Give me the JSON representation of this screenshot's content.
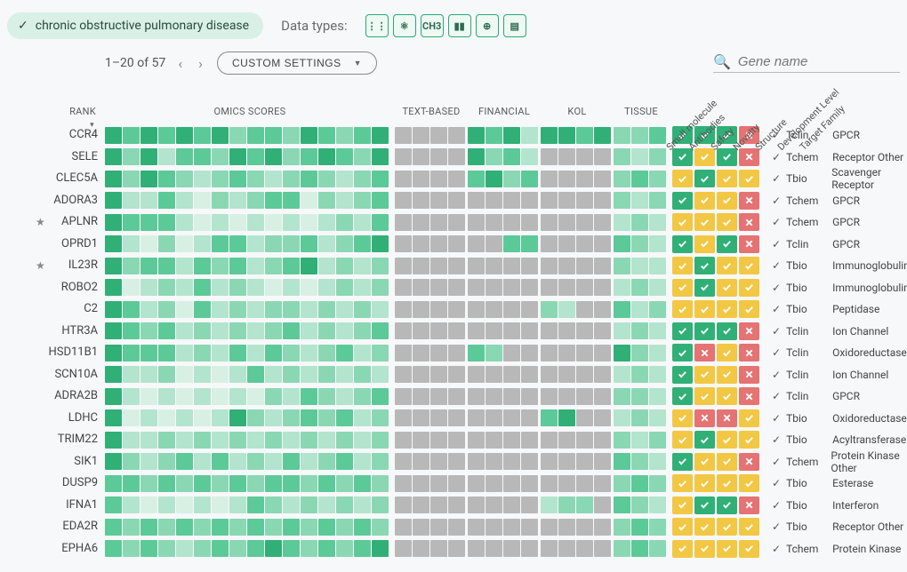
{
  "topbar": {
    "disease": "chronic obstructive pulmonary disease",
    "datatypes_label": "Data types:",
    "datatype_icons": [
      "⋮⋮",
      "⚛",
      "CH3",
      "▮▮",
      "⊕",
      "▤"
    ]
  },
  "controls": {
    "pager_text": "1–20 of 57",
    "custom_button": "CUSTOM SETTINGS",
    "search_placeholder": "Gene name"
  },
  "headers": {
    "rank": "RANK",
    "omics": "OMICS SCORES",
    "text": "TEXT-BASED",
    "financial": "FINANCIAL",
    "kol": "KOL",
    "tissue": "TISSUE",
    "diag": [
      "Small molecule",
      "Antibodies",
      "Safety",
      "Novelty",
      "Structure",
      "Development Level",
      "Target Family"
    ]
  },
  "palette": {
    "s0": "#f3faf6",
    "s1": "#d8f0e4",
    "s2": "#b3e4cd",
    "s3": "#8ad7b4",
    "s4": "#5cc998",
    "s5": "#30b077",
    "na": "#b8b8b8"
  },
  "col_widths": {
    "omics": 16,
    "text": 4,
    "financial": 4,
    "kol": 4,
    "tissue": 3
  },
  "rows": [
    {
      "gene": "CCR4",
      "star": false,
      "omics": [
        5,
        4,
        5,
        4,
        5,
        4,
        5,
        3,
        4,
        4,
        3,
        5,
        4,
        3,
        4,
        5
      ],
      "text": [
        "na",
        "na",
        "na",
        "na"
      ],
      "financial": [
        5,
        4,
        5,
        2
      ],
      "kol": [
        5,
        5,
        4,
        5
      ],
      "tissue": [
        3,
        3,
        4
      ],
      "drug": [
        "g",
        "g",
        "g",
        "r"
      ],
      "dev": "Tclin",
      "fam": "GPCR"
    },
    {
      "gene": "SELE",
      "star": false,
      "omics": [
        5,
        3,
        5,
        2,
        4,
        4,
        3,
        5,
        4,
        5,
        3,
        4,
        5,
        4,
        3,
        5
      ],
      "text": [
        "na",
        "na",
        "na",
        "na"
      ],
      "financial": [
        5,
        3,
        4,
        2
      ],
      "kol": [
        "na",
        "na",
        "na",
        "na"
      ],
      "tissue": [
        3,
        2,
        3
      ],
      "drug": [
        "g",
        "y",
        "g",
        "r"
      ],
      "dev": "Tchem",
      "fam": "Receptor Other"
    },
    {
      "gene": "CLEC5A",
      "star": false,
      "omics": [
        5,
        3,
        5,
        4,
        3,
        2,
        3,
        4,
        3,
        2,
        3,
        4,
        3,
        2,
        3,
        4
      ],
      "text": [
        "na",
        "na",
        "na",
        "na"
      ],
      "financial": [
        4,
        5,
        3,
        4
      ],
      "kol": [
        "na",
        "na",
        "na",
        "na"
      ],
      "tissue": [
        3,
        4,
        3
      ],
      "drug": [
        "y",
        "g",
        "y",
        "y"
      ],
      "dev": "Tbio",
      "fam": "Scavenger Receptor"
    },
    {
      "gene": "ADORA3",
      "star": false,
      "omics": [
        5,
        2,
        2,
        4,
        2,
        1,
        3,
        2,
        3,
        4,
        4,
        1,
        3,
        2,
        3,
        4
      ],
      "text": [
        "na",
        "na",
        "na",
        "na"
      ],
      "financial": [
        "na",
        "na",
        "na",
        "na"
      ],
      "kol": [
        "na",
        "na",
        "na",
        "na"
      ],
      "tissue": [
        3,
        2,
        3
      ],
      "drug": [
        "g",
        "y",
        "y",
        "r"
      ],
      "dev": "Tchem",
      "fam": "GPCR"
    },
    {
      "gene": "APLNR",
      "star": true,
      "omics": [
        5,
        4,
        4,
        4,
        2,
        1,
        2,
        1,
        2,
        1,
        2,
        1,
        2,
        3,
        2,
        4
      ],
      "text": [
        "na",
        "na",
        "na",
        "na"
      ],
      "financial": [
        "na",
        "na",
        "na",
        "na"
      ],
      "kol": [
        "na",
        "na",
        "na",
        "na"
      ],
      "tissue": [
        2,
        3,
        2
      ],
      "drug": [
        "y",
        "y",
        "y",
        "r"
      ],
      "dev": "Tchem",
      "fam": "GPCR"
    },
    {
      "gene": "OPRD1",
      "star": false,
      "omics": [
        5,
        2,
        1,
        3,
        1,
        2,
        4,
        4,
        2,
        3,
        3,
        4,
        2,
        3,
        4,
        5
      ],
      "text": [
        "na",
        "na",
        "na",
        "na"
      ],
      "financial": [
        "na",
        "na",
        4,
        4
      ],
      "kol": [
        "na",
        "na",
        "na",
        "na"
      ],
      "tissue": [
        4,
        3,
        2
      ],
      "drug": [
        "g",
        "y",
        "g",
        "r"
      ],
      "dev": "Tclin",
      "fam": "GPCR"
    },
    {
      "gene": "IL23R",
      "star": true,
      "omics": [
        5,
        3,
        4,
        4,
        2,
        4,
        3,
        4,
        2,
        3,
        4,
        5,
        2,
        3,
        2,
        3
      ],
      "text": [
        "na",
        "na",
        "na",
        "na"
      ],
      "financial": [
        "na",
        "na",
        "na",
        "na"
      ],
      "kol": [
        "na",
        "na",
        "na",
        "na"
      ],
      "tissue": [
        3,
        2,
        2
      ],
      "drug": [
        "y",
        "g",
        "y",
        "y"
      ],
      "dev": "Tbio",
      "fam": "Immunoglobulin"
    },
    {
      "gene": "ROBO2",
      "star": false,
      "omics": [
        5,
        1,
        2,
        3,
        2,
        4,
        2,
        3,
        2,
        1,
        2,
        1,
        2,
        3,
        2,
        3
      ],
      "text": [
        "na",
        "na",
        "na",
        "na"
      ],
      "financial": [
        "na",
        "na",
        "na",
        "na"
      ],
      "kol": [
        "na",
        "na",
        "na",
        "na"
      ],
      "tissue": [
        2,
        3,
        2
      ],
      "drug": [
        "y",
        "g",
        "y",
        "y"
      ],
      "dev": "Tbio",
      "fam": "Immunoglobulin"
    },
    {
      "gene": "C2",
      "star": false,
      "omics": [
        5,
        4,
        2,
        3,
        1,
        4,
        2,
        3,
        2,
        3,
        3,
        2,
        3,
        2,
        3,
        2
      ],
      "text": [
        "na",
        "na",
        "na",
        "na"
      ],
      "financial": [
        "na",
        "na",
        "na",
        "na"
      ],
      "kol": [
        3,
        2,
        "na",
        "na"
      ],
      "tissue": [
        4,
        2,
        3
      ],
      "drug": [
        "y",
        "y",
        "y",
        "y"
      ],
      "dev": "Tbio",
      "fam": "Peptidase"
    },
    {
      "gene": "HTR3A",
      "star": false,
      "omics": [
        5,
        4,
        3,
        4,
        2,
        3,
        2,
        3,
        2,
        3,
        4,
        2,
        3,
        2,
        3,
        4
      ],
      "text": [
        "na",
        "na",
        "na",
        "na"
      ],
      "financial": [
        "na",
        "na",
        "na",
        "na"
      ],
      "kol": [
        "na",
        "na",
        "na",
        "na"
      ],
      "tissue": [
        2,
        3,
        2
      ],
      "drug": [
        "g",
        "g",
        "g",
        "r"
      ],
      "dev": "Tclin",
      "fam": "Ion Channel"
    },
    {
      "gene": "HSD11B1",
      "star": false,
      "omics": [
        5,
        4,
        4,
        4,
        2,
        3,
        2,
        4,
        2,
        4,
        3,
        2,
        3,
        4,
        2,
        3
      ],
      "text": [
        "na",
        "na",
        "na",
        "na"
      ],
      "financial": [
        4,
        3,
        "na",
        "na"
      ],
      "kol": [
        "na",
        "na",
        "na",
        "na"
      ],
      "tissue": [
        5,
        3,
        2
      ],
      "drug": [
        "g",
        "r",
        "y",
        "r"
      ],
      "dev": "Tclin",
      "fam": "Oxidoreductase"
    },
    {
      "gene": "SCN10A",
      "star": false,
      "omics": [
        5,
        2,
        2,
        3,
        1,
        2,
        1,
        2,
        4,
        2,
        3,
        2,
        3,
        2,
        3,
        2
      ],
      "text": [
        "na",
        "na",
        "na",
        "na"
      ],
      "financial": [
        "na",
        "na",
        "na",
        "na"
      ],
      "kol": [
        "na",
        "na",
        "na",
        "na"
      ],
      "tissue": [
        2,
        3,
        2
      ],
      "drug": [
        "g",
        "y",
        "y",
        "r"
      ],
      "dev": "Tclin",
      "fam": "Ion Channel"
    },
    {
      "gene": "ADRA2B",
      "star": false,
      "omics": [
        5,
        2,
        1,
        2,
        1,
        2,
        1,
        2,
        1,
        3,
        2,
        4,
        3,
        2,
        3,
        4
      ],
      "text": [
        "na",
        "na",
        "na",
        "na"
      ],
      "financial": [
        "na",
        "na",
        "na",
        "na"
      ],
      "kol": [
        "na",
        "na",
        "na",
        "na"
      ],
      "tissue": [
        3,
        3,
        2
      ],
      "drug": [
        "g",
        "y",
        "y",
        "r"
      ],
      "dev": "Tclin",
      "fam": "GPCR"
    },
    {
      "gene": "LDHC",
      "star": false,
      "omics": [
        5,
        1,
        2,
        1,
        2,
        1,
        2,
        5,
        3,
        2,
        3,
        4,
        3,
        4,
        2,
        3
      ],
      "text": [
        "na",
        "na",
        "na",
        "na"
      ],
      "financial": [
        "na",
        "na",
        "na",
        "na"
      ],
      "kol": [
        4,
        5,
        "na",
        "na"
      ],
      "tissue": [
        2,
        3,
        2
      ],
      "drug": [
        "y",
        "r",
        "r",
        "y"
      ],
      "dev": "Tbio",
      "fam": "Oxidoreductase"
    },
    {
      "gene": "TRIM22",
      "star": false,
      "omics": [
        5,
        2,
        2,
        3,
        2,
        3,
        2,
        3,
        2,
        3,
        2,
        3,
        2,
        3,
        2,
        3
      ],
      "text": [
        "na",
        "na",
        "na",
        "na"
      ],
      "financial": [
        "na",
        "na",
        "na",
        "na"
      ],
      "kol": [
        "na",
        "na",
        "na",
        "na"
      ],
      "tissue": [
        3,
        2,
        3
      ],
      "drug": [
        "y",
        "g",
        "y",
        "y"
      ],
      "dev": "Tbio",
      "fam": "Acyltransferase"
    },
    {
      "gene": "SIK1",
      "star": false,
      "omics": [
        5,
        3,
        2,
        3,
        4,
        2,
        4,
        2,
        3,
        2,
        4,
        2,
        3,
        4,
        2,
        3
      ],
      "text": [
        "na",
        "na",
        "na",
        "na"
      ],
      "financial": [
        "na",
        "na",
        "na",
        "na"
      ],
      "kol": [
        "na",
        "na",
        "na",
        "na"
      ],
      "tissue": [
        4,
        3,
        2
      ],
      "drug": [
        "g",
        "y",
        "y",
        "r"
      ],
      "dev": "Tchem",
      "fam": "Protein Kinase Other"
    },
    {
      "gene": "DUSP9",
      "star": false,
      "omics": [
        4,
        4,
        3,
        4,
        3,
        4,
        3,
        4,
        3,
        4,
        4,
        3,
        4,
        3,
        4,
        3
      ],
      "text": [
        "na",
        "na",
        "na",
        "na"
      ],
      "financial": [
        "na",
        "na",
        "na",
        "na"
      ],
      "kol": [
        "na",
        "na",
        "na",
        "na"
      ],
      "tissue": [
        3,
        4,
        3
      ],
      "drug": [
        "y",
        "y",
        "y",
        "y"
      ],
      "dev": "Tbio",
      "fam": "Esterase"
    },
    {
      "gene": "IFNA1",
      "star": false,
      "omics": [
        4,
        2,
        1,
        2,
        1,
        2,
        1,
        2,
        4,
        3,
        2,
        3,
        2,
        3,
        2,
        3
      ],
      "text": [
        "na",
        "na",
        "na",
        "na"
      ],
      "financial": [
        "na",
        "na",
        "na",
        "na"
      ],
      "kol": [
        2,
        3,
        3,
        "na"
      ],
      "tissue": [
        4,
        3,
        2
      ],
      "drug": [
        "y",
        "g",
        "g",
        "r"
      ],
      "dev": "Tbio",
      "fam": "Interferon"
    },
    {
      "gene": "EDA2R",
      "star": false,
      "omics": [
        4,
        3,
        4,
        3,
        4,
        3,
        4,
        3,
        4,
        3,
        4,
        3,
        4,
        3,
        4,
        3
      ],
      "text": [
        "na",
        "na",
        "na",
        "na"
      ],
      "financial": [
        "na",
        "na",
        "na",
        "na"
      ],
      "kol": [
        "na",
        "na",
        "na",
        "na"
      ],
      "tissue": [
        3,
        4,
        3
      ],
      "drug": [
        "y",
        "y",
        "y",
        "y"
      ],
      "dev": "Tbio",
      "fam": "Receptor Other"
    },
    {
      "gene": "EPHA6",
      "star": false,
      "omics": [
        4,
        3,
        4,
        3,
        2,
        3,
        4,
        3,
        4,
        5,
        4,
        3,
        4,
        3,
        4,
        5
      ],
      "text": [
        "na",
        "na",
        "na",
        "na"
      ],
      "financial": [
        "na",
        "na",
        "na",
        "na"
      ],
      "kol": [
        "na",
        "na",
        "na",
        "na"
      ],
      "tissue": [
        3,
        4,
        3
      ],
      "drug": [
        "y",
        "y",
        "y",
        "y"
      ],
      "dev": "Tchem",
      "fam": "Protein Kinase"
    }
  ]
}
